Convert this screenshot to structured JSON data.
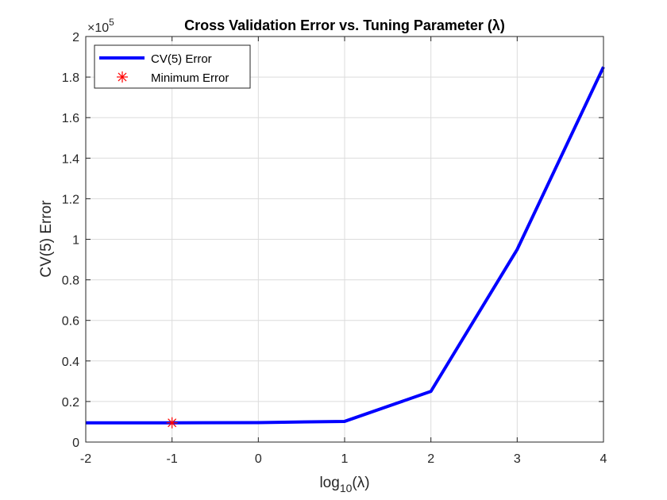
{
  "chart_data": {
    "type": "line",
    "title": "Cross Validation Error vs. Tuning Parameter (λ)",
    "xlabel": "log10(λ)",
    "ylabel": "CV(5) Error",
    "y_multiplier_label": "×10",
    "y_multiplier_exponent": "5",
    "xlim": [
      -2,
      4
    ],
    "ylim": [
      0,
      2
    ],
    "x_ticks": [
      "-2",
      "-1",
      "0",
      "1",
      "2",
      "3",
      "4"
    ],
    "y_ticks": [
      "0",
      "0.2",
      "0.4",
      "0.6",
      "0.8",
      "1",
      "1.2",
      "1.4",
      "1.6",
      "1.8",
      "2"
    ],
    "grid": true,
    "legend_position": "top-left",
    "series": [
      {
        "name": "CV(5) Error",
        "color": "#0000ff",
        "x": [
          -2,
          -1,
          0,
          1,
          2,
          3,
          4
        ],
        "y": [
          0.095,
          0.095,
          0.096,
          0.102,
          0.25,
          0.95,
          1.85
        ]
      },
      {
        "name": "Minimum Error",
        "color": "#ff0000",
        "marker": "asterisk",
        "x": [
          -1
        ],
        "y": [
          0.095
        ]
      }
    ]
  }
}
